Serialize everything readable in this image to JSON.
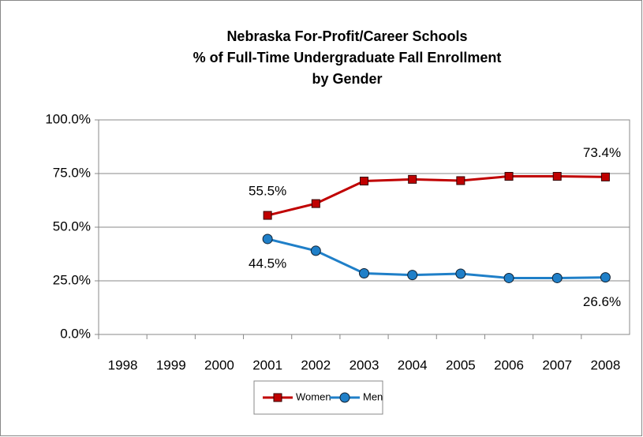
{
  "chart_data": {
    "type": "line",
    "title": [
      "Nebraska For-Profit/Career Schools",
      "% of Full-Time Undergraduate Fall Enrollment",
      "by Gender"
    ],
    "categories": [
      "1998",
      "1999",
      "2000",
      "2001",
      "2002",
      "2003",
      "2004",
      "2005",
      "2006",
      "2007",
      "2008"
    ],
    "series": [
      {
        "name": "Women",
        "color": "#c00000",
        "marker": "square",
        "values": [
          null,
          null,
          null,
          55.5,
          61,
          71.5,
          72.3,
          71.7,
          73.7,
          73.7,
          73.4
        ],
        "value_labels": [
          null,
          null,
          null,
          "55.5%",
          null,
          null,
          null,
          null,
          null,
          null,
          "73.4%"
        ]
      },
      {
        "name": "Men",
        "color": "#1f7fc8",
        "marker": "circle",
        "values": [
          null,
          null,
          null,
          44.5,
          39,
          28.5,
          27.7,
          28.3,
          26.3,
          26.3,
          26.6
        ],
        "value_labels": [
          null,
          null,
          null,
          "44.5%",
          null,
          null,
          null,
          null,
          null,
          null,
          "26.6%"
        ]
      }
    ],
    "ylim": [
      0,
      100
    ],
    "yticks": [
      {
        "value": 0,
        "label": "0.0%"
      },
      {
        "value": 25,
        "label": "25.0%"
      },
      {
        "value": 50,
        "label": "50.0%"
      },
      {
        "value": 75,
        "label": "75.0%"
      },
      {
        "value": 100,
        "label": "100.0%"
      }
    ],
    "grid": true,
    "legend": "bottom"
  }
}
